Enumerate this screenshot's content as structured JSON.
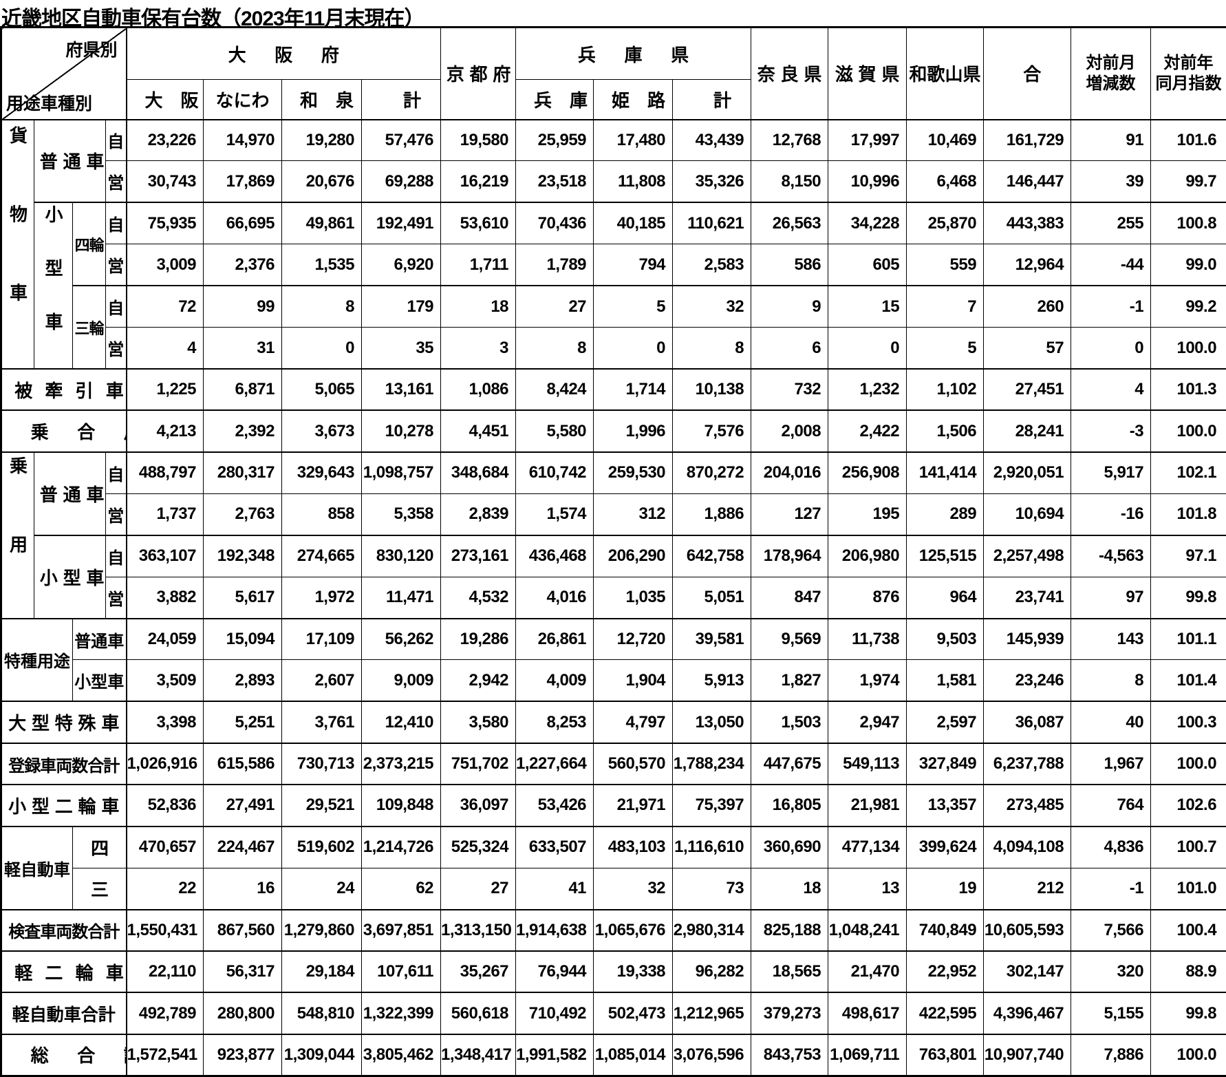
{
  "title": "近畿地区自動車保有台数（2023年11月末現在）",
  "corner": {
    "top_right": "府県別",
    "bottom_left": "用途車種別"
  },
  "columns": {
    "osaka_group": "大阪府",
    "osaka_sub": [
      "大阪",
      "なにわ",
      "和泉",
      "計"
    ],
    "kyoto": "京都府",
    "hyogo_group": "兵庫県",
    "hyogo_sub": [
      "兵庫",
      "姫路",
      "計"
    ],
    "nara": "奈良県",
    "shiga": "滋賀県",
    "wakayama": "和歌山県",
    "total": "合計",
    "mom": "対前月\n増減数",
    "yoy": "対前年\n同月指数"
  },
  "labels": {
    "cargo": "貨物車",
    "standard": "普通車",
    "small_v": "小型車",
    "four_wheel": "四輪",
    "three_wheel": "三輪",
    "private": "自",
    "commercial": "営",
    "trailer": "被牽引車",
    "bus": "乗合用",
    "passenger": "乗用",
    "p_standard": "普通車",
    "p_small": "小型車",
    "special_use": "特種用途",
    "su_standard": "普通車",
    "su_small": "小型車",
    "large_special": "大型特殊車",
    "registered_total": "登録車両数合計",
    "small_motorcycle": "小型二輪車",
    "kei": "軽自動車",
    "kei_four": "四輪",
    "kei_three": "三輪",
    "inspected_total": "検査車両数合計",
    "kei_motorcycle": "軽二輪車",
    "kei_total": "軽自動車合計",
    "grand_total": "総合計"
  },
  "rows": [
    {
      "name": "cargo-standard-private",
      "values": [
        "23,226",
        "14,970",
        "19,280",
        "57,476",
        "19,580",
        "25,959",
        "17,480",
        "43,439",
        "12,768",
        "17,997",
        "10,469",
        "161,729",
        "91",
        "101.6"
      ]
    },
    {
      "name": "cargo-standard-commercial",
      "values": [
        "30,743",
        "17,869",
        "20,676",
        "69,288",
        "16,219",
        "23,518",
        "11,808",
        "35,326",
        "8,150",
        "10,996",
        "6,468",
        "146,447",
        "39",
        "99.7"
      ]
    },
    {
      "name": "cargo-small-four-private",
      "values": [
        "75,935",
        "66,695",
        "49,861",
        "192,491",
        "53,610",
        "70,436",
        "40,185",
        "110,621",
        "26,563",
        "34,228",
        "25,870",
        "443,383",
        "255",
        "100.8"
      ]
    },
    {
      "name": "cargo-small-four-commercial",
      "values": [
        "3,009",
        "2,376",
        "1,535",
        "6,920",
        "1,711",
        "1,789",
        "794",
        "2,583",
        "586",
        "605",
        "559",
        "12,964",
        "-44",
        "99.0"
      ]
    },
    {
      "name": "cargo-small-three-private",
      "values": [
        "72",
        "99",
        "8",
        "179",
        "18",
        "27",
        "5",
        "32",
        "9",
        "15",
        "7",
        "260",
        "-1",
        "99.2"
      ]
    },
    {
      "name": "cargo-small-three-commercial",
      "values": [
        "4",
        "31",
        "0",
        "35",
        "3",
        "8",
        "0",
        "8",
        "6",
        "0",
        "5",
        "57",
        "0",
        "100.0"
      ]
    },
    {
      "name": "trailer",
      "values": [
        "1,225",
        "6,871",
        "5,065",
        "13,161",
        "1,086",
        "8,424",
        "1,714",
        "10,138",
        "732",
        "1,232",
        "1,102",
        "27,451",
        "4",
        "101.3"
      ]
    },
    {
      "name": "bus",
      "values": [
        "4,213",
        "2,392",
        "3,673",
        "10,278",
        "4,451",
        "5,580",
        "1,996",
        "7,576",
        "2,008",
        "2,422",
        "1,506",
        "28,241",
        "-3",
        "100.0"
      ]
    },
    {
      "name": "passenger-standard-private",
      "values": [
        "488,797",
        "280,317",
        "329,643",
        "1,098,757",
        "348,684",
        "610,742",
        "259,530",
        "870,272",
        "204,016",
        "256,908",
        "141,414",
        "2,920,051",
        "5,917",
        "102.1"
      ]
    },
    {
      "name": "passenger-standard-commercial",
      "values": [
        "1,737",
        "2,763",
        "858",
        "5,358",
        "2,839",
        "1,574",
        "312",
        "1,886",
        "127",
        "195",
        "289",
        "10,694",
        "-16",
        "101.8"
      ]
    },
    {
      "name": "passenger-small-private",
      "values": [
        "363,107",
        "192,348",
        "274,665",
        "830,120",
        "273,161",
        "436,468",
        "206,290",
        "642,758",
        "178,964",
        "206,980",
        "125,515",
        "2,257,498",
        "-4,563",
        "97.1"
      ]
    },
    {
      "name": "passenger-small-commercial",
      "values": [
        "3,882",
        "5,617",
        "1,972",
        "11,471",
        "4,532",
        "4,016",
        "1,035",
        "5,051",
        "847",
        "876",
        "964",
        "23,741",
        "97",
        "99.8"
      ]
    },
    {
      "name": "special-standard",
      "values": [
        "24,059",
        "15,094",
        "17,109",
        "56,262",
        "19,286",
        "26,861",
        "12,720",
        "39,581",
        "9,569",
        "11,738",
        "9,503",
        "145,939",
        "143",
        "101.1"
      ]
    },
    {
      "name": "special-small",
      "values": [
        "3,509",
        "2,893",
        "2,607",
        "9,009",
        "2,942",
        "4,009",
        "1,904",
        "5,913",
        "1,827",
        "1,974",
        "1,581",
        "23,246",
        "8",
        "101.4"
      ]
    },
    {
      "name": "large-special",
      "values": [
        "3,398",
        "5,251",
        "3,761",
        "12,410",
        "3,580",
        "8,253",
        "4,797",
        "13,050",
        "1,503",
        "2,947",
        "2,597",
        "36,087",
        "40",
        "100.3"
      ]
    },
    {
      "name": "registered-total",
      "values": [
        "1,026,916",
        "615,586",
        "730,713",
        "2,373,215",
        "751,702",
        "1,227,664",
        "560,570",
        "1,788,234",
        "447,675",
        "549,113",
        "327,849",
        "6,237,788",
        "1,967",
        "100.0"
      ]
    },
    {
      "name": "small-motorcycle",
      "values": [
        "52,836",
        "27,491",
        "29,521",
        "109,848",
        "36,097",
        "53,426",
        "21,971",
        "75,397",
        "16,805",
        "21,981",
        "13,357",
        "273,485",
        "764",
        "102.6"
      ]
    },
    {
      "name": "kei-four-wheel",
      "values": [
        "470,657",
        "224,467",
        "519,602",
        "1,214,726",
        "525,324",
        "633,507",
        "483,103",
        "1,116,610",
        "360,690",
        "477,134",
        "399,624",
        "4,094,108",
        "4,836",
        "100.7"
      ]
    },
    {
      "name": "kei-three-wheel",
      "values": [
        "22",
        "16",
        "24",
        "62",
        "27",
        "41",
        "32",
        "73",
        "18",
        "13",
        "19",
        "212",
        "-1",
        "101.0"
      ]
    },
    {
      "name": "inspected-total",
      "values": [
        "1,550,431",
        "867,560",
        "1,279,860",
        "3,697,851",
        "1,313,150",
        "1,914,638",
        "1,065,676",
        "2,980,314",
        "825,188",
        "1,048,241",
        "740,849",
        "10,605,593",
        "7,566",
        "100.4"
      ]
    },
    {
      "name": "kei-motorcycle",
      "values": [
        "22,110",
        "56,317",
        "29,184",
        "107,611",
        "35,267",
        "76,944",
        "19,338",
        "96,282",
        "18,565",
        "21,470",
        "22,952",
        "302,147",
        "320",
        "88.9"
      ]
    },
    {
      "name": "kei-total",
      "values": [
        "492,789",
        "280,800",
        "548,810",
        "1,322,399",
        "560,618",
        "710,492",
        "502,473",
        "1,212,965",
        "379,273",
        "498,617",
        "422,595",
        "4,396,467",
        "5,155",
        "99.8"
      ]
    },
    {
      "name": "grand-total",
      "values": [
        "1,572,541",
        "923,877",
        "1,309,044",
        "3,805,462",
        "1,348,417",
        "1,991,582",
        "1,085,014",
        "3,076,596",
        "843,753",
        "1,069,711",
        "763,801",
        "10,907,740",
        "7,886",
        "100.0"
      ]
    }
  ]
}
